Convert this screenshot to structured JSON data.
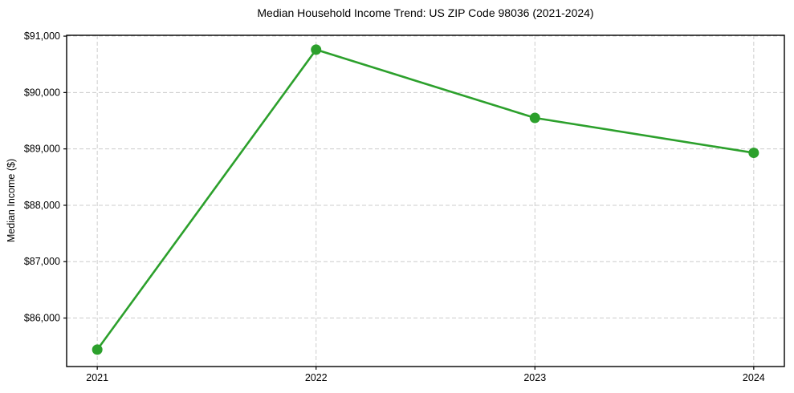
{
  "figure": {
    "background": "#ffffff"
  },
  "chart_data": {
    "type": "line",
    "title": "Median Household Income Trend: US ZIP Code 98036 (2021-2024)",
    "xlabel": "",
    "ylabel": "Median Income ($)",
    "x": [
      2021,
      2022,
      2023,
      2024
    ],
    "values": [
      85440,
      90760,
      89550,
      88930
    ],
    "xlim": [
      2020.86,
      2024.14
    ],
    "ylim": [
      85140,
      91015
    ],
    "xticks": [
      {
        "value": 2021,
        "label": "2021"
      },
      {
        "value": 2022,
        "label": "2022"
      },
      {
        "value": 2023,
        "label": "2023"
      },
      {
        "value": 2024,
        "label": "2024"
      }
    ],
    "yticks": [
      {
        "value": 86000,
        "label": "$86,000"
      },
      {
        "value": 87000,
        "label": "$87,000"
      },
      {
        "value": 88000,
        "label": "$88,000"
      },
      {
        "value": 89000,
        "label": "$89,000"
      },
      {
        "value": 90000,
        "label": "$90,000"
      },
      {
        "value": 91000,
        "label": "$91,000"
      }
    ],
    "grid": true,
    "grid_style": "dashed",
    "legend": "none",
    "colors": {
      "line": "#2ca02c",
      "marker": "#2ca02c",
      "grid": "#cccccc",
      "spine": "#000000",
      "text": "#000000"
    }
  }
}
